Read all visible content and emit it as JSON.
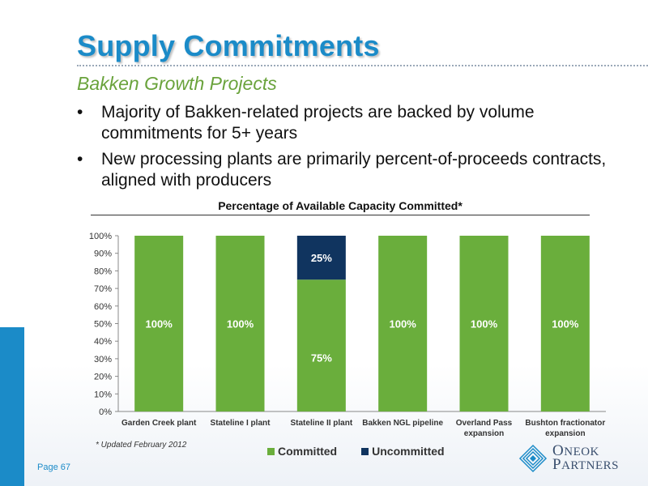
{
  "slide": {
    "title": "Supply Commitments",
    "subtitle": "Bakken Growth Projects",
    "bullets": [
      "Majority of Bakken-related projects are backed by volume commitments for 5+ years",
      "New processing plants are primarily percent-of-proceeds contracts, aligned with producers"
    ],
    "bullet_glyph": "•",
    "footnote": "* Updated February 2012",
    "page": "Page 67",
    "logo": {
      "line1_initial": "O",
      "line1_rest": "NEOK",
      "line2_initial": "P",
      "line2_rest": "ARTNERS"
    }
  },
  "colors": {
    "accent": "#1b8bc8",
    "committed": "#6aae3c",
    "uncommitted": "#10345f",
    "subtitle": "#6aa33c"
  },
  "chart_data": {
    "type": "bar",
    "stacked": true,
    "title": "Percentage of Available Capacity Committed*",
    "categories": [
      [
        "Garden Creek plant"
      ],
      [
        "Stateline I plant"
      ],
      [
        "Stateline II plant"
      ],
      [
        "Bakken NGL pipeline"
      ],
      [
        "Overland Pass",
        "expansion"
      ],
      [
        "Bushton fractionator",
        "expansion"
      ]
    ],
    "series": [
      {
        "name": "Committed",
        "values": [
          100,
          100,
          75,
          100,
          100,
          100
        ],
        "labels": [
          "100%",
          "100%",
          "75%",
          "100%",
          "100%",
          "100%"
        ]
      },
      {
        "name": "Uncommitted",
        "values": [
          0,
          0,
          25,
          0,
          0,
          0
        ],
        "labels": [
          "",
          "",
          "25%",
          "",
          "",
          ""
        ]
      }
    ],
    "yticks": [
      "0%",
      "10%",
      "20%",
      "30%",
      "40%",
      "50%",
      "60%",
      "70%",
      "80%",
      "90%",
      "100%"
    ],
    "ylim": [
      0,
      100
    ],
    "grid": false,
    "legend_position": "bottom"
  }
}
